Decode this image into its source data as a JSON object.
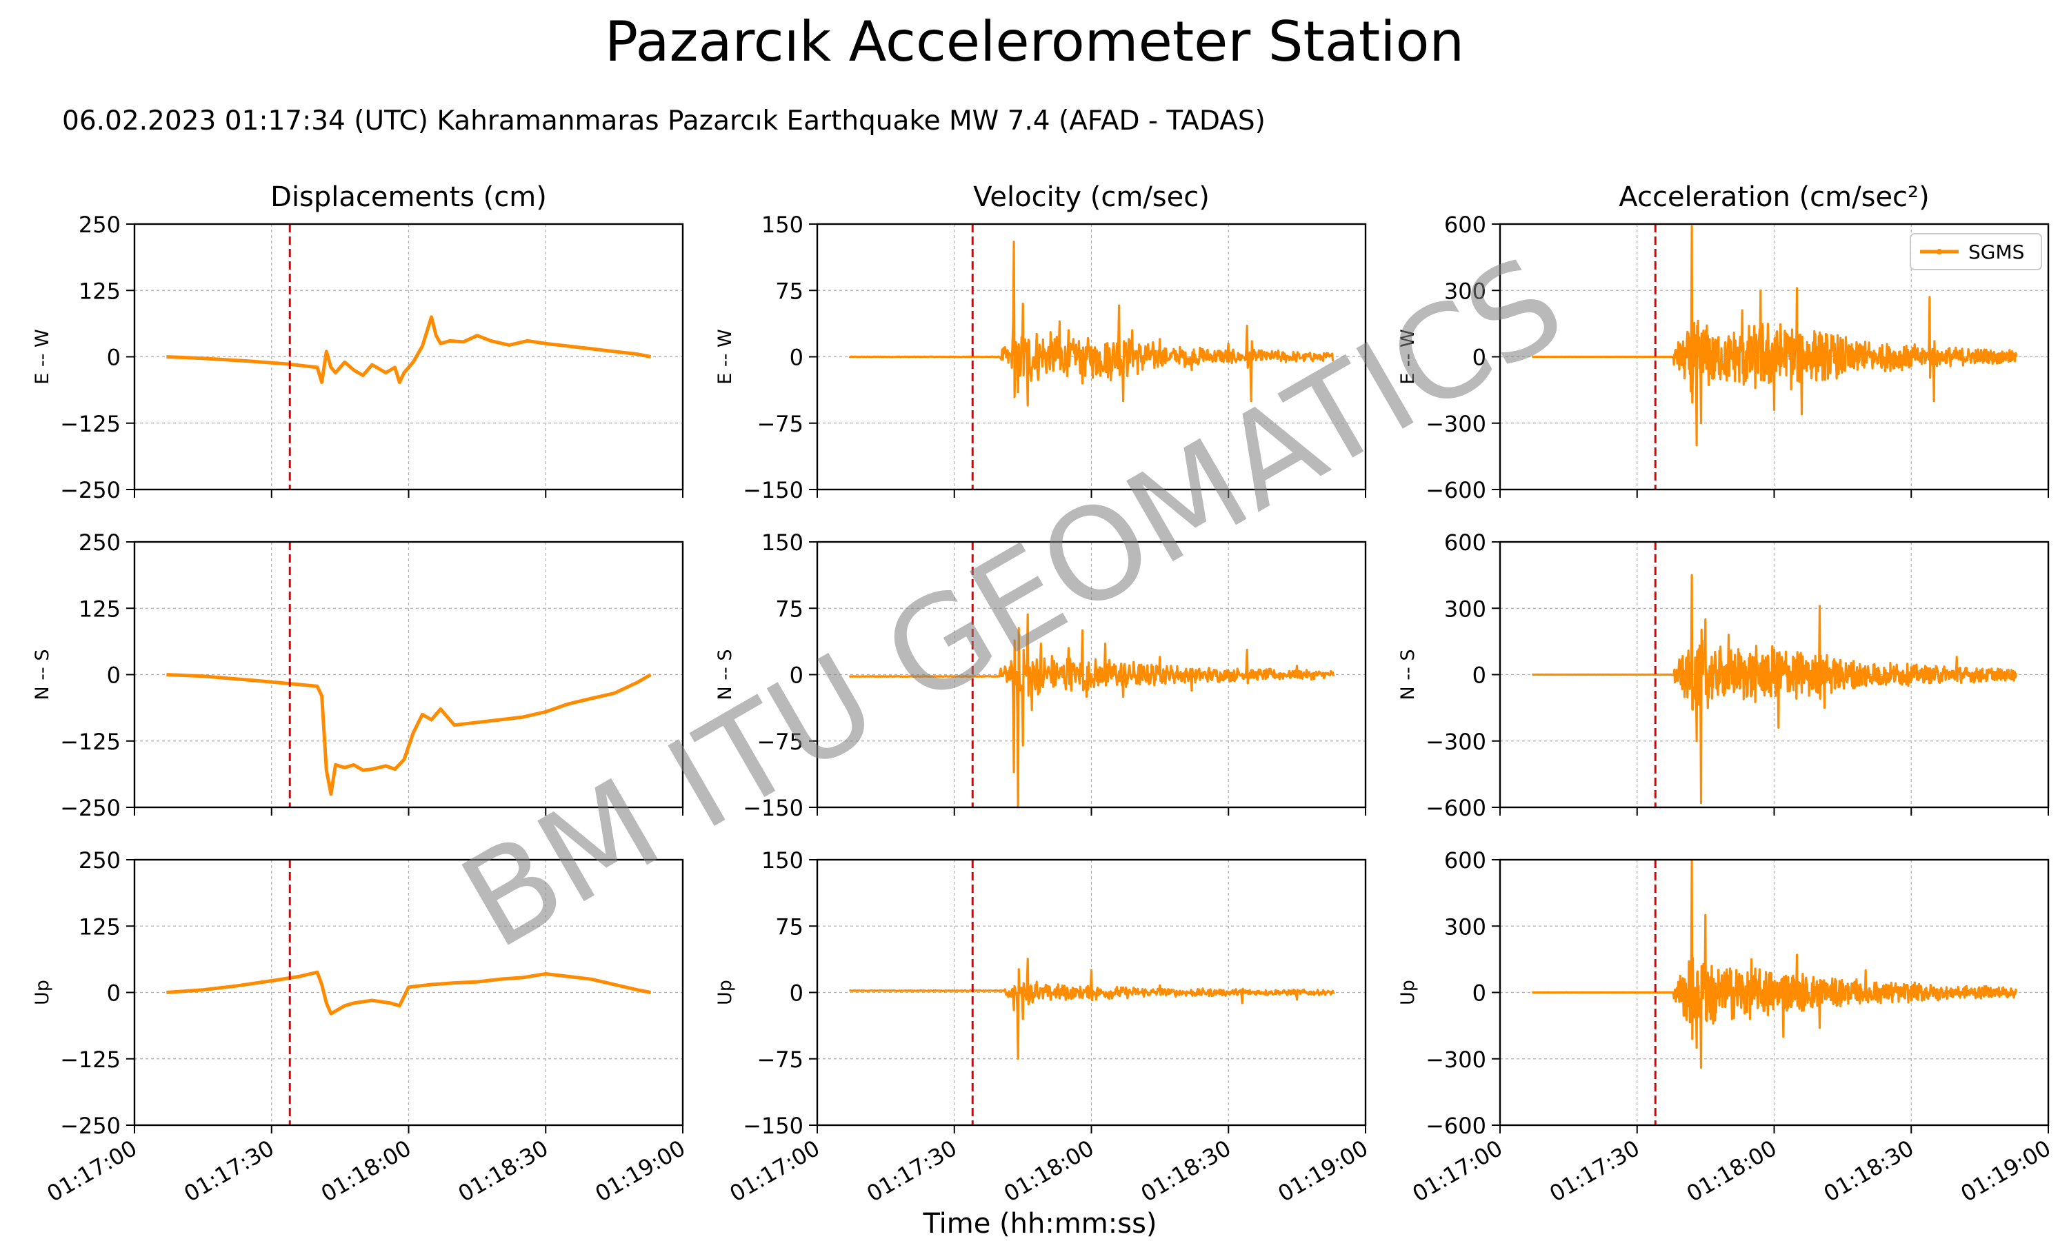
{
  "title": "Pazarcık Accelerometer Station",
  "subtitle": "06.02.2023 01:17:34 (UTC) Kahramanmaras Pazarcık Earthquake MW 7.4 (AFAD - TADAS)",
  "xlabel": "Time (hh:mm:ss)",
  "watermark": "BM ITU GEOMATICS",
  "colors": {
    "series": "#ff8c00",
    "marker": "#e00000",
    "grid": "#b0b0b0"
  },
  "chart_data": {
    "type": "line",
    "x_range": [
      "01:17:00",
      "01:19:00"
    ],
    "x_ticks": [
      "01:17:00",
      "01:17:30",
      "01:18:00",
      "01:18:30",
      "01:19:00"
    ],
    "event_time": "01:17:34",
    "grid": true,
    "legend": {
      "position": "top-right",
      "entries": [
        "SGMS"
      ]
    },
    "columns": [
      {
        "title": "Displacements (cm)",
        "ylim": [
          -250,
          250
        ],
        "yticks": [
          "250",
          "125",
          "0",
          "−125",
          "−250"
        ]
      },
      {
        "title": "Velocity (cm/sec)",
        "ylim": [
          -150,
          150
        ],
        "yticks": [
          "150",
          "75",
          "0",
          "−75",
          "−150"
        ]
      },
      {
        "title": "Acceleration (cm/sec²)",
        "ylim": [
          -600,
          600
        ],
        "yticks": [
          "600",
          "300",
          "0",
          "−300",
          "−600"
        ]
      }
    ],
    "rows": [
      "E -- W",
      "N -- S",
      "Up"
    ],
    "series": [
      {
        "name": "SGMS",
        "row": 0,
        "col": 0,
        "kind": "smooth",
        "t": [
          "01:17:07",
          "01:17:15",
          "01:17:25",
          "01:17:34",
          "01:17:40",
          "01:17:41",
          "01:17:42",
          "01:17:43",
          "01:17:44",
          "01:17:46",
          "01:17:48",
          "01:17:50",
          "01:17:52",
          "01:17:55",
          "01:17:57",
          "01:17:58",
          "01:17:59",
          "01:18:01",
          "01:18:03",
          "01:18:05",
          "01:18:06",
          "01:18:07",
          "01:18:09",
          "01:18:12",
          "01:18:15",
          "01:18:18",
          "01:18:22",
          "01:18:26",
          "01:18:30",
          "01:18:35",
          "01:18:40",
          "01:18:45",
          "01:18:50",
          "01:18:53"
        ],
        "values": [
          0,
          -3,
          -8,
          -14,
          -20,
          -48,
          10,
          -20,
          -30,
          -10,
          -25,
          -35,
          -15,
          -30,
          -20,
          -48,
          -30,
          -10,
          20,
          75,
          40,
          25,
          30,
          28,
          40,
          30,
          22,
          30,
          25,
          20,
          15,
          10,
          5,
          0
        ]
      },
      {
        "name": "SGMS",
        "row": 1,
        "col": 0,
        "kind": "smooth",
        "t": [
          "01:17:07",
          "01:17:15",
          "01:17:25",
          "01:17:34",
          "01:17:40",
          "01:17:41",
          "01:17:42",
          "01:17:43",
          "01:17:44",
          "01:17:46",
          "01:17:48",
          "01:17:50",
          "01:17:52",
          "01:17:55",
          "01:17:57",
          "01:17:59",
          "01:18:01",
          "01:18:03",
          "01:18:05",
          "01:18:07",
          "01:18:10",
          "01:18:15",
          "01:18:20",
          "01:18:25",
          "01:18:30",
          "01:18:35",
          "01:18:40",
          "01:18:45",
          "01:18:50",
          "01:18:53"
        ],
        "values": [
          0,
          -3,
          -10,
          -17,
          -22,
          -40,
          -180,
          -225,
          -170,
          -175,
          -170,
          -180,
          -178,
          -172,
          -178,
          -160,
          -110,
          -75,
          -85,
          -65,
          -95,
          -90,
          -85,
          -80,
          -70,
          -55,
          -45,
          -35,
          -15,
          0
        ]
      },
      {
        "name": "SGMS",
        "row": 2,
        "col": 0,
        "kind": "smooth",
        "t": [
          "01:17:07",
          "01:17:15",
          "01:17:22",
          "01:17:30",
          "01:17:36",
          "01:17:40",
          "01:17:41",
          "01:17:42",
          "01:17:43",
          "01:17:44",
          "01:17:46",
          "01:17:48",
          "01:17:52",
          "01:17:56",
          "01:17:58",
          "01:18:00",
          "01:18:05",
          "01:18:10",
          "01:18:15",
          "01:18:20",
          "01:18:25",
          "01:18:30",
          "01:18:35",
          "01:18:40",
          "01:18:45",
          "01:18:50",
          "01:18:53"
        ],
        "values": [
          0,
          5,
          12,
          22,
          30,
          38,
          15,
          -20,
          -40,
          -35,
          -25,
          -20,
          -15,
          -20,
          -25,
          10,
          15,
          18,
          20,
          25,
          28,
          35,
          30,
          25,
          15,
          5,
          0
        ]
      },
      {
        "name": "SGMS",
        "row": 0,
        "col": 1,
        "kind": "wave",
        "start": "01:17:07",
        "end": "01:18:53",
        "onset": "01:17:40",
        "pre_level": 0,
        "n": 700,
        "peaks": [
          [
            "01:17:43",
            130
          ],
          [
            "01:17:44",
            -40
          ],
          [
            "01:17:45",
            60
          ],
          [
            "01:17:46",
            -55
          ],
          [
            "01:17:53",
            40
          ],
          [
            "01:17:55",
            30
          ],
          [
            "01:17:58",
            -30
          ],
          [
            "01:18:01",
            -20
          ],
          [
            "01:18:06",
            58
          ],
          [
            "01:18:07",
            -50
          ],
          [
            "01:18:09",
            30
          ],
          [
            "01:18:15",
            20
          ],
          [
            "01:18:22",
            -15
          ],
          [
            "01:18:30",
            15
          ],
          [
            "01:18:34",
            35
          ],
          [
            "01:18:35",
            -50
          ]
        ],
        "noise": [
          [
            0,
            8
          ],
          [
            0.08,
            38
          ],
          [
            0.2,
            22
          ],
          [
            0.35,
            28
          ],
          [
            0.5,
            14
          ],
          [
            0.7,
            9
          ],
          [
            1,
            5
          ]
        ]
      },
      {
        "name": "SGMS",
        "row": 1,
        "col": 1,
        "kind": "wave",
        "start": "01:17:07",
        "end": "01:18:53",
        "onset": "01:17:40",
        "pre_level": -2,
        "n": 700,
        "peaks": [
          [
            "01:17:43",
            -110
          ],
          [
            "01:17:44",
            -150
          ],
          [
            "01:17:45",
            -80
          ],
          [
            "01:17:46",
            68
          ],
          [
            "01:17:47",
            -40
          ],
          [
            "01:17:49",
            35
          ],
          [
            "01:17:55",
            30
          ],
          [
            "01:17:58",
            50
          ],
          [
            "01:17:59",
            -25
          ],
          [
            "01:18:03",
            35
          ],
          [
            "01:18:07",
            -25
          ],
          [
            "01:18:15",
            20
          ],
          [
            "01:18:22",
            -18
          ],
          [
            "01:18:34",
            28
          ],
          [
            "01:18:45",
            10
          ]
        ],
        "noise": [
          [
            0,
            8
          ],
          [
            0.08,
            30
          ],
          [
            0.2,
            22
          ],
          [
            0.35,
            18
          ],
          [
            0.5,
            12
          ],
          [
            0.7,
            8
          ],
          [
            1,
            5
          ]
        ]
      },
      {
        "name": "SGMS",
        "row": 2,
        "col": 1,
        "kind": "wave",
        "start": "01:17:07",
        "end": "01:18:53",
        "onset": "01:17:41",
        "pre_level": 2,
        "n": 700,
        "peaks": [
          [
            "01:17:43",
            -20
          ],
          [
            "01:17:44",
            -75
          ],
          [
            "01:17:45",
            -30
          ],
          [
            "01:17:46",
            38
          ],
          [
            "01:17:48",
            12
          ],
          [
            "01:18:00",
            25
          ],
          [
            "01:18:01",
            -8
          ],
          [
            "01:18:15",
            8
          ],
          [
            "01:18:33",
            -12
          ],
          [
            "01:18:45",
            -8
          ]
        ],
        "noise": [
          [
            0,
            5
          ],
          [
            0.08,
            12
          ],
          [
            0.2,
            9
          ],
          [
            0.35,
            7
          ],
          [
            0.5,
            5
          ],
          [
            0.7,
            4
          ],
          [
            1,
            3
          ]
        ]
      },
      {
        "name": "SGMS",
        "row": 0,
        "col": 2,
        "kind": "wave",
        "start": "01:17:07",
        "end": "01:18:53",
        "onset": "01:17:38",
        "pre_level": 0,
        "n": 1000,
        "peaks": [
          [
            "01:17:42",
            590
          ],
          [
            "01:17:43",
            -400
          ],
          [
            "01:17:44",
            -300
          ],
          [
            "01:17:53",
            210
          ],
          [
            "01:17:57",
            300
          ],
          [
            "01:18:00",
            -240
          ],
          [
            "01:18:05",
            310
          ],
          [
            "01:18:06",
            -260
          ],
          [
            "01:18:10",
            110
          ],
          [
            "01:18:34",
            270
          ],
          [
            "01:18:35",
            -200
          ]
        ],
        "noise": [
          [
            0,
            40
          ],
          [
            0.06,
            180
          ],
          [
            0.15,
            130
          ],
          [
            0.3,
            170
          ],
          [
            0.42,
            120
          ],
          [
            0.6,
            70
          ],
          [
            0.8,
            45
          ],
          [
            1,
            30
          ]
        ]
      },
      {
        "name": "SGMS",
        "row": 1,
        "col": 2,
        "kind": "wave",
        "start": "01:17:07",
        "end": "01:18:53",
        "onset": "01:17:38",
        "pre_level": 0,
        "n": 1000,
        "peaks": [
          [
            "01:17:42",
            450
          ],
          [
            "01:17:43",
            -300
          ],
          [
            "01:17:44",
            -580
          ],
          [
            "01:17:45",
            250
          ],
          [
            "01:17:50",
            180
          ],
          [
            "01:18:01",
            -240
          ],
          [
            "01:18:10",
            310
          ],
          [
            "01:18:11",
            -150
          ],
          [
            "01:18:40",
            80
          ]
        ],
        "noise": [
          [
            0,
            40
          ],
          [
            0.06,
            180
          ],
          [
            0.15,
            120
          ],
          [
            0.3,
            140
          ],
          [
            0.42,
            100
          ],
          [
            0.6,
            60
          ],
          [
            0.8,
            40
          ],
          [
            1,
            30
          ]
        ]
      },
      {
        "name": "SGMS",
        "row": 2,
        "col": 2,
        "kind": "wave",
        "start": "01:17:07",
        "end": "01:18:53",
        "onset": "01:17:38",
        "pre_level": 0,
        "n": 1000,
        "peaks": [
          [
            "01:17:42",
            600
          ],
          [
            "01:17:43",
            -250
          ],
          [
            "01:17:44",
            -340
          ],
          [
            "01:17:45",
            350
          ],
          [
            "01:17:55",
            150
          ],
          [
            "01:18:02",
            -200
          ],
          [
            "01:18:05",
            170
          ],
          [
            "01:18:10",
            -160
          ],
          [
            "01:18:20",
            100
          ]
        ],
        "noise": [
          [
            0,
            40
          ],
          [
            0.06,
            200
          ],
          [
            0.15,
            130
          ],
          [
            0.3,
            110
          ],
          [
            0.42,
            80
          ],
          [
            0.6,
            55
          ],
          [
            0.8,
            35
          ],
          [
            1,
            25
          ]
        ]
      }
    ]
  }
}
